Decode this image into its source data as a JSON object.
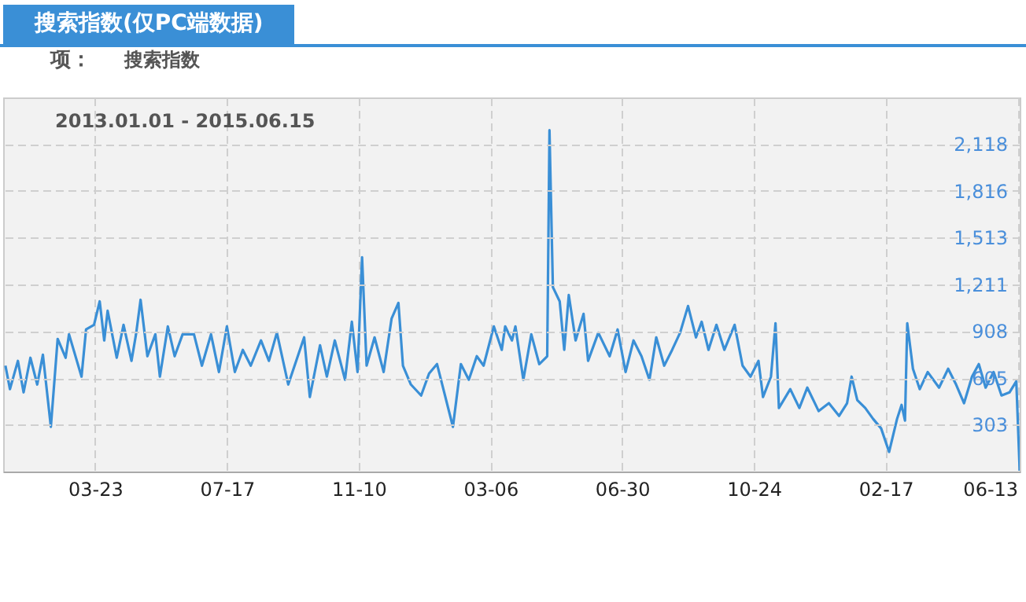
{
  "chart_data": {
    "type": "line",
    "title": "搜索指数(仅PC端数据)",
    "legend_title": "项：",
    "legend": "top left",
    "grid": true,
    "annotations": [
      "2013.01.01 - 2015.06.15"
    ],
    "xlim": [
      "2013-01-01",
      "2015-06-15"
    ],
    "xticks": [
      {
        "value": "2013-03-23",
        "label": "03-23"
      },
      {
        "value": "2013-07-17",
        "label": "07-17"
      },
      {
        "value": "2013-11-10",
        "label": "11-10"
      },
      {
        "value": "2014-03-06",
        "label": "03-06"
      },
      {
        "value": "2014-06-30",
        "label": "06-30"
      },
      {
        "value": "2014-10-24",
        "label": "10-24"
      },
      {
        "value": "2015-02-17",
        "label": "02-17"
      },
      {
        "value": "2015-06-13",
        "label": "06-13"
      }
    ],
    "ylim": [
      0,
      2420
    ],
    "yticks": [
      {
        "value": 303,
        "label": "303"
      },
      {
        "value": 605,
        "label": "605"
      },
      {
        "value": 908,
        "label": "908"
      },
      {
        "value": 1211,
        "label": "1,211"
      },
      {
        "value": 1513,
        "label": "1,513"
      },
      {
        "value": 1816,
        "label": "1,816"
      },
      {
        "value": 2118,
        "label": "2,118"
      }
    ],
    "series": [
      {
        "name": "搜索指数",
        "color": "#3a8fd6",
        "x": [
          "2013-01-03",
          "2013-01-07",
          "2013-01-14",
          "2013-01-19",
          "2013-01-25",
          "2013-01-31",
          "2013-02-05",
          "2013-02-12",
          "2013-02-18",
          "2013-02-25",
          "2013-02-28",
          "2013-03-11",
          "2013-03-15",
          "2013-03-22",
          "2013-03-27",
          "2013-03-31",
          "2013-04-03",
          "2013-04-11",
          "2013-04-17",
          "2013-04-24",
          "2013-04-28",
          "2013-05-02",
          "2013-05-08",
          "2013-05-15",
          "2013-05-19",
          "2013-05-26",
          "2013-06-01",
          "2013-06-08",
          "2013-06-18",
          "2013-06-25",
          "2013-07-03",
          "2013-07-10",
          "2013-07-17",
          "2013-07-24",
          "2013-07-31",
          "2013-08-07",
          "2013-08-16",
          "2013-08-23",
          "2013-08-30",
          "2013-09-09",
          "2013-09-16",
          "2013-09-23",
          "2013-09-28",
          "2013-10-07",
          "2013-10-13",
          "2013-10-20",
          "2013-10-29",
          "2013-11-04",
          "2013-11-09",
          "2013-11-13",
          "2013-11-17",
          "2013-11-24",
          "2013-12-02",
          "2013-12-09",
          "2013-12-15",
          "2013-12-19",
          "2013-12-26",
          "2014-01-04",
          "2014-01-11",
          "2014-01-18",
          "2014-01-25",
          "2014-02-01",
          "2014-02-08",
          "2014-02-15",
          "2014-02-22",
          "2014-02-28",
          "2014-03-09",
          "2014-03-16",
          "2014-03-19",
          "2014-03-25",
          "2014-03-28",
          "2014-04-04",
          "2014-04-11",
          "2014-04-18",
          "2014-04-25",
          "2014-04-27",
          "2014-04-30",
          "2014-05-06",
          "2014-05-10",
          "2014-05-14",
          "2014-05-20",
          "2014-05-27",
          "2014-05-31",
          "2014-06-09",
          "2014-06-19",
          "2014-06-26",
          "2014-07-03",
          "2014-07-10",
          "2014-07-17",
          "2014-07-24",
          "2014-07-30",
          "2014-08-06",
          "2014-08-13",
          "2014-08-20",
          "2014-08-27",
          "2014-09-03",
          "2014-09-08",
          "2014-09-14",
          "2014-09-21",
          "2014-09-28",
          "2014-10-07",
          "2014-10-14",
          "2014-10-21",
          "2014-10-28",
          "2014-11-01",
          "2014-11-08",
          "2014-11-12",
          "2014-11-15",
          "2014-11-25",
          "2014-12-03",
          "2014-12-10",
          "2014-12-20",
          "2014-12-29",
          "2015-01-07",
          "2015-01-14",
          "2015-01-18",
          "2015-01-23",
          "2015-01-30",
          "2015-02-06",
          "2015-02-13",
          "2015-02-20",
          "2015-02-27",
          "2015-03-03",
          "2015-03-06",
          "2015-03-08",
          "2015-03-13",
          "2015-03-19",
          "2015-03-26",
          "2015-04-05",
          "2015-04-13",
          "2015-04-20",
          "2015-04-27",
          "2015-05-04",
          "2015-05-10",
          "2015-05-16",
          "2015-05-23",
          "2015-05-30",
          "2015-06-06",
          "2015-06-12",
          "2015-06-15"
        ],
        "values": [
          685,
          533,
          716,
          512,
          736,
          563,
          756,
          289,
          858,
          736,
          888,
          614,
          919,
          949,
          1101,
          848,
          1040,
          736,
          949,
          716,
          888,
          1111,
          746,
          888,
          614,
          939,
          746,
          888,
          888,
          685,
          888,
          644,
          939,
          644,
          787,
          685,
          848,
          716,
          898,
          563,
          716,
          868,
          482,
          817,
          614,
          848,
          594,
          969,
          644,
          1386,
          685,
          868,
          644,
          990,
          1091,
          685,
          563,
          492,
          634,
          695,
          492,
          289,
          695,
          594,
          746,
          685,
          939,
          787,
          939,
          848,
          939,
          594,
          888,
          695,
          746,
          2208,
          1193,
          1101,
          787,
          1142,
          848,
          1020,
          716,
          898,
          746,
          919,
          644,
          848,
          746,
          594,
          868,
          685,
          787,
          898,
          1071,
          868,
          969,
          787,
          949,
          787,
          949,
          685,
          614,
          716,
          482,
          614,
          959,
          411,
          533,
          411,
          543,
          391,
          442,
          360,
          442,
          614,
          462,
          411,
          340,
          279,
          127,
          340,
          431,
          330,
          959,
          665,
          533,
          644,
          543,
          665,
          563,
          442,
          614,
          695,
          543,
          644,
          492,
          512,
          584,
          5
        ]
      }
    ]
  }
}
